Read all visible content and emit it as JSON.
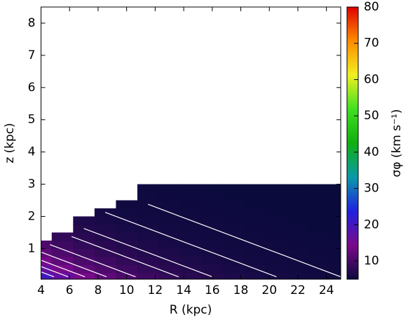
{
  "chart_data": {
    "type": "heatmap",
    "xlabel": "R (kpc)",
    "ylabel": "z (kpc)",
    "colorbar_label": "σφ (km s⁻¹)",
    "x": [
      4,
      5.5,
      7,
      8.5,
      10,
      11.5,
      13,
      14.5,
      16,
      17.5,
      19,
      20.5,
      22,
      23.5,
      25
    ],
    "y": [
      0.125,
      0.375,
      0.625,
      0.875,
      1.125,
      1.375,
      1.625,
      1.875,
      2.125,
      2.375,
      2.625,
      2.875
    ],
    "values": [
      [
        20.0,
        16.7,
        14.1,
        12.1,
        10.5,
        9.3,
        8.3,
        7.6,
        7.0,
        6.6,
        6.2,
        6.0,
        5.7,
        5.6,
        5.5
      ],
      [
        16.7,
        14.1,
        12.1,
        10.5,
        9.3,
        8.3,
        7.6,
        7.0,
        6.6,
        6.2,
        6.0,
        5.7,
        5.6,
        5.5,
        5.4
      ],
      [
        14.1,
        12.1,
        10.5,
        9.3,
        8.3,
        7.6,
        7.0,
        6.6,
        6.2,
        6.0,
        5.7,
        5.6,
        5.5,
        5.4,
        5.3
      ],
      [
        12.1,
        10.5,
        9.3,
        8.3,
        7.6,
        7.0,
        6.6,
        6.2,
        6.0,
        5.7,
        5.6,
        5.5,
        5.4,
        5.3,
        5.2
      ],
      [
        10.5,
        9.3,
        8.3,
        7.6,
        7.0,
        6.6,
        6.2,
        6.0,
        5.7,
        5.6,
        5.5,
        5.4,
        5.3,
        5.2,
        5.2
      ],
      [
        null,
        8.3,
        7.6,
        7.0,
        6.6,
        6.2,
        6.0,
        5.7,
        5.6,
        5.5,
        5.4,
        5.3,
        5.2,
        5.2,
        5.1
      ],
      [
        null,
        null,
        7.0,
        6.6,
        6.2,
        6.0,
        5.7,
        5.6,
        5.5,
        5.4,
        5.3,
        5.2,
        5.2,
        5.1,
        5.1
      ],
      [
        null,
        null,
        6.6,
        6.2,
        6.0,
        5.7,
        5.6,
        5.5,
        5.4,
        5.3,
        5.2,
        5.2,
        5.1,
        5.1,
        5.1
      ],
      [
        null,
        null,
        null,
        6.0,
        5.7,
        5.6,
        5.5,
        5.4,
        5.3,
        5.2,
        5.2,
        5.1,
        5.1,
        5.1,
        5.1
      ],
      [
        null,
        null,
        null,
        null,
        5.6,
        5.5,
        5.4,
        5.3,
        5.2,
        5.2,
        5.1,
        5.1,
        5.1,
        5.1,
        5.0
      ],
      [
        null,
        null,
        null,
        null,
        null,
        5.4,
        5.3,
        5.2,
        5.2,
        5.1,
        5.1,
        5.1,
        5.1,
        5.0,
        5.0
      ],
      [
        null,
        null,
        null,
        null,
        null,
        5.3,
        5.2,
        5.2,
        5.1,
        5.1,
        5.1,
        5.1,
        5.0,
        5.0,
        5.0
      ]
    ],
    "contour_levels": [
      5.5,
      6,
      7,
      8,
      10,
      12,
      14,
      16,
      18
    ],
    "contour_color": "#ffffff",
    "xlim": [
      4,
      25
    ],
    "ylim": [
      0.05,
      8.5
    ],
    "xticks": [
      4,
      6,
      8,
      10,
      12,
      14,
      16,
      18,
      20,
      22,
      24
    ],
    "yticks": [
      1,
      2,
      3,
      4,
      5,
      6,
      7,
      8
    ],
    "clim": [
      5,
      80
    ],
    "cticks": [
      10,
      20,
      30,
      40,
      50,
      60,
      70,
      80
    ],
    "colormap": [
      "#0a0a3c",
      "#7a0a8c",
      "#2020e0",
      "#0a9aa8",
      "#10b010",
      "#40e020",
      "#f0f020",
      "#ff8c00",
      "#e00000"
    ]
  }
}
